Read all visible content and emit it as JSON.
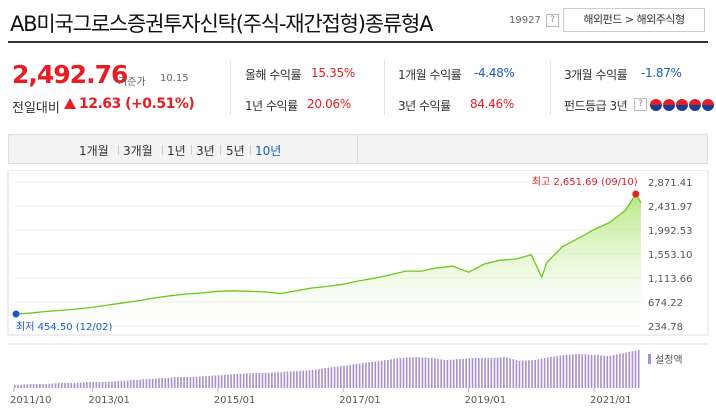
{
  "fund": {
    "title": "AB미국그로스증권투자신탁(주식-재간접형)종류형A",
    "code": "19927",
    "help": "?",
    "breadcrumb": "해외펀드 > 해외주식형"
  },
  "price": {
    "value": "2,492.76",
    "label": "기준가",
    "date": "10.15",
    "prev_label": "전일대비",
    "change": "12.63 (+0.51%)"
  },
  "returns": [
    {
      "label": "올해 수익률",
      "value": "15.35%",
      "color": "#e41e24"
    },
    {
      "label": "1년 수익률",
      "value": "20.06%",
      "color": "#e41e24"
    },
    {
      "label": "1개월 수익률",
      "value": "-4.48%",
      "color": "#1a5bbd"
    },
    {
      "label": "3년 수익률",
      "value": "84.46%",
      "color": "#e41e24"
    },
    {
      "label": "3개월 수익률",
      "value": "-1.87%",
      "color": "#1a5bbd"
    },
    {
      "label": "펀드등급 3년",
      "value": "",
      "color": "#333"
    }
  ],
  "grade_icons": 5,
  "period_tabs": [
    "1개월",
    "3개월",
    "1년",
    "3년",
    "5년",
    "10년"
  ],
  "active_tab": "10년",
  "chart_data": {
    "type": "area",
    "yticks": [
      "2,871.41",
      "2,431.97",
      "1,992.53",
      "1,553.10",
      "1,113.66",
      "674.22",
      "234.78"
    ],
    "ylim": [
      234.78,
      2871.41
    ],
    "xticks": [
      "2011/10",
      "2013/01",
      "2015/01",
      "2017/01",
      "2019/01",
      "2021/01"
    ],
    "high_label": "최고 2,651.69 (09/10)",
    "low_label": "최저 454.50 (12/02)",
    "legend": "설정액",
    "x": [
      "2011/10",
      "2012/01",
      "2012/04",
      "2012/07",
      "2012/10",
      "2013/01",
      "2013/04",
      "2013/07",
      "2013/10",
      "2014/01",
      "2014/04",
      "2014/07",
      "2014/10",
      "2015/01",
      "2015/04",
      "2015/07",
      "2015/10",
      "2016/01",
      "2016/04",
      "2016/07",
      "2016/10",
      "2017/01",
      "2017/04",
      "2017/07",
      "2017/10",
      "2018/01",
      "2018/04",
      "2018/07",
      "2018/10",
      "2019/01",
      "2019/04",
      "2019/07",
      "2019/10",
      "2020/01",
      "2020/03",
      "2020/04",
      "2020/07",
      "2020/10",
      "2021/01",
      "2021/04",
      "2021/07",
      "2021/09",
      "2021/10"
    ],
    "values": [
      454.5,
      470,
      500,
      520,
      545,
      575,
      620,
      660,
      700,
      750,
      790,
      820,
      840,
      870,
      880,
      870,
      860,
      830,
      880,
      930,
      960,
      1000,
      1060,
      1110,
      1170,
      1240,
      1240,
      1300,
      1330,
      1220,
      1370,
      1440,
      1460,
      1540,
      1130,
      1400,
      1690,
      1840,
      2000,
      2130,
      2350,
      2651.69,
      2492.76
    ],
    "volume_series": "설정액",
    "volume": [
      3,
      4,
      4,
      5,
      5,
      6,
      6,
      7,
      8,
      9,
      10,
      11,
      11,
      12,
      13,
      14,
      15,
      15,
      16,
      17,
      18,
      20,
      22,
      24,
      26,
      28,
      30,
      31,
      30,
      28,
      29,
      30,
      30,
      31,
      27,
      28,
      31,
      33,
      34,
      33,
      32,
      35,
      38
    ]
  }
}
